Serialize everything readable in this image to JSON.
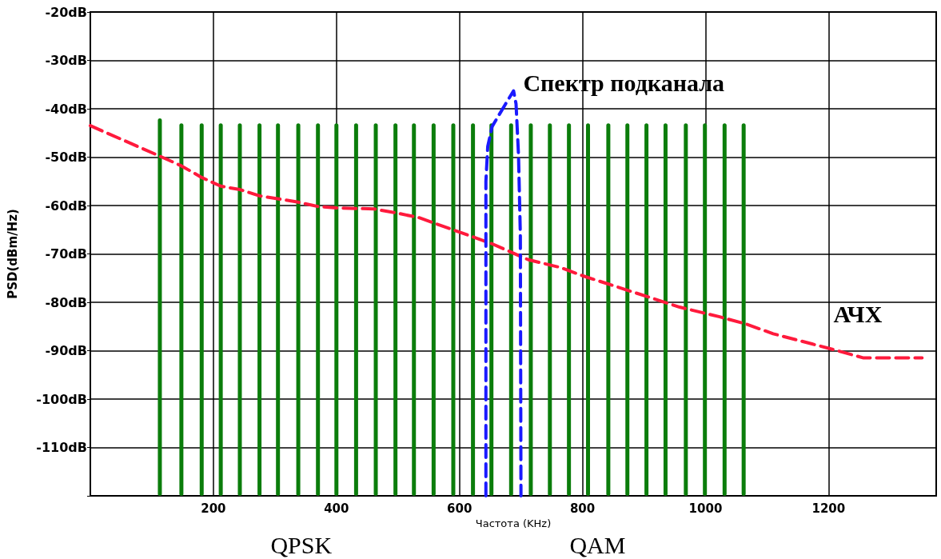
{
  "chart_data": {
    "type": "bar",
    "xlabel": "Частота (KHz)",
    "ylabel": "PSD(dBm/Hz)",
    "annotations": [
      "QPSK",
      "QAM"
    ],
    "xlim": [
      0,
      1375
    ],
    "xticks": [
      200,
      400,
      600,
      800,
      1000,
      1200
    ],
    "ylim": [
      -120,
      -20
    ],
    "yticks": [
      {
        "value": -20,
        "label": "-20dB"
      },
      {
        "value": -30,
        "label": "-30dB"
      },
      {
        "value": -40,
        "label": "-40dB"
      },
      {
        "value": -50,
        "label": "-50dB"
      },
      {
        "value": -60,
        "label": "-60dB"
      },
      {
        "value": -70,
        "label": "-70dB"
      },
      {
        "value": -80,
        "label": "-80dB"
      },
      {
        "value": -90,
        "label": "-90dB"
      },
      {
        "value": -100,
        "label": "-100dB"
      },
      {
        "value": -110,
        "label": "-110dB"
      },
      {
        "value": -120,
        "label": null
      }
    ],
    "grid": true,
    "legend": false,
    "series": [
      {
        "color": "#0b7d0b",
        "x": [
          113,
          148,
          181,
          212,
          243,
          275,
          305,
          338,
          370,
          400,
          432,
          464,
          496,
          526,
          558,
          590,
          622,
          652,
          684,
          716,
          747,
          778,
          809,
          842,
          873,
          904,
          935,
          968,
          999,
          1031,
          1062
        ],
        "base": [
          -120,
          -120,
          -120,
          -120,
          -120,
          -120,
          -120,
          -120,
          -120,
          -120,
          -120,
          -120,
          -120,
          -120,
          -120,
          -120,
          -120,
          -120,
          -120,
          -120,
          -120,
          -120,
          -120,
          -120,
          -120,
          -120,
          -120,
          -120,
          -120,
          -120,
          -120
        ],
        "values": [
          78,
          77,
          77,
          77,
          77,
          77,
          77,
          77,
          77,
          77,
          77,
          77,
          77,
          77,
          77,
          77,
          77,
          77,
          77,
          77,
          77,
          77,
          77,
          77,
          77,
          77,
          77,
          77,
          77,
          77,
          77
        ]
      },
      {
        "type": "line",
        "name": "АЧХ",
        "color": "#ff1a3c",
        "line_style": "dashed",
        "marker": "none",
        "x": [
          0,
          113,
          148,
          181,
          212,
          243,
          275,
          338,
          370,
          400,
          461,
          496,
          534,
          651,
          712,
          764,
          800,
          958,
          1023,
          1066,
          1110,
          1200,
          1257,
          1352
        ],
        "values": [
          -43.5,
          -49.8,
          -51.8,
          -54.2,
          -56,
          -56.7,
          -58,
          -59.3,
          -60.2,
          -60.5,
          -60.7,
          -61.5,
          -62.5,
          -67.8,
          -71.2,
          -72.8,
          -74.5,
          -81,
          -83,
          -84.5,
          -86.5,
          -89.5,
          -91.5,
          -91.5
        ]
      },
      {
        "type": "line",
        "name": "Спектр подканала",
        "color": "#1a1aff",
        "line_style": "dashed",
        "marker": "none",
        "x": [
          643,
          643,
          646,
          653,
          675,
          688,
          692,
          696,
          699,
          700
        ],
        "values": [
          -120,
          -55,
          -47.8,
          -43.7,
          -39,
          -36.3,
          -39,
          -49.5,
          -66,
          -120
        ]
      }
    ]
  }
}
